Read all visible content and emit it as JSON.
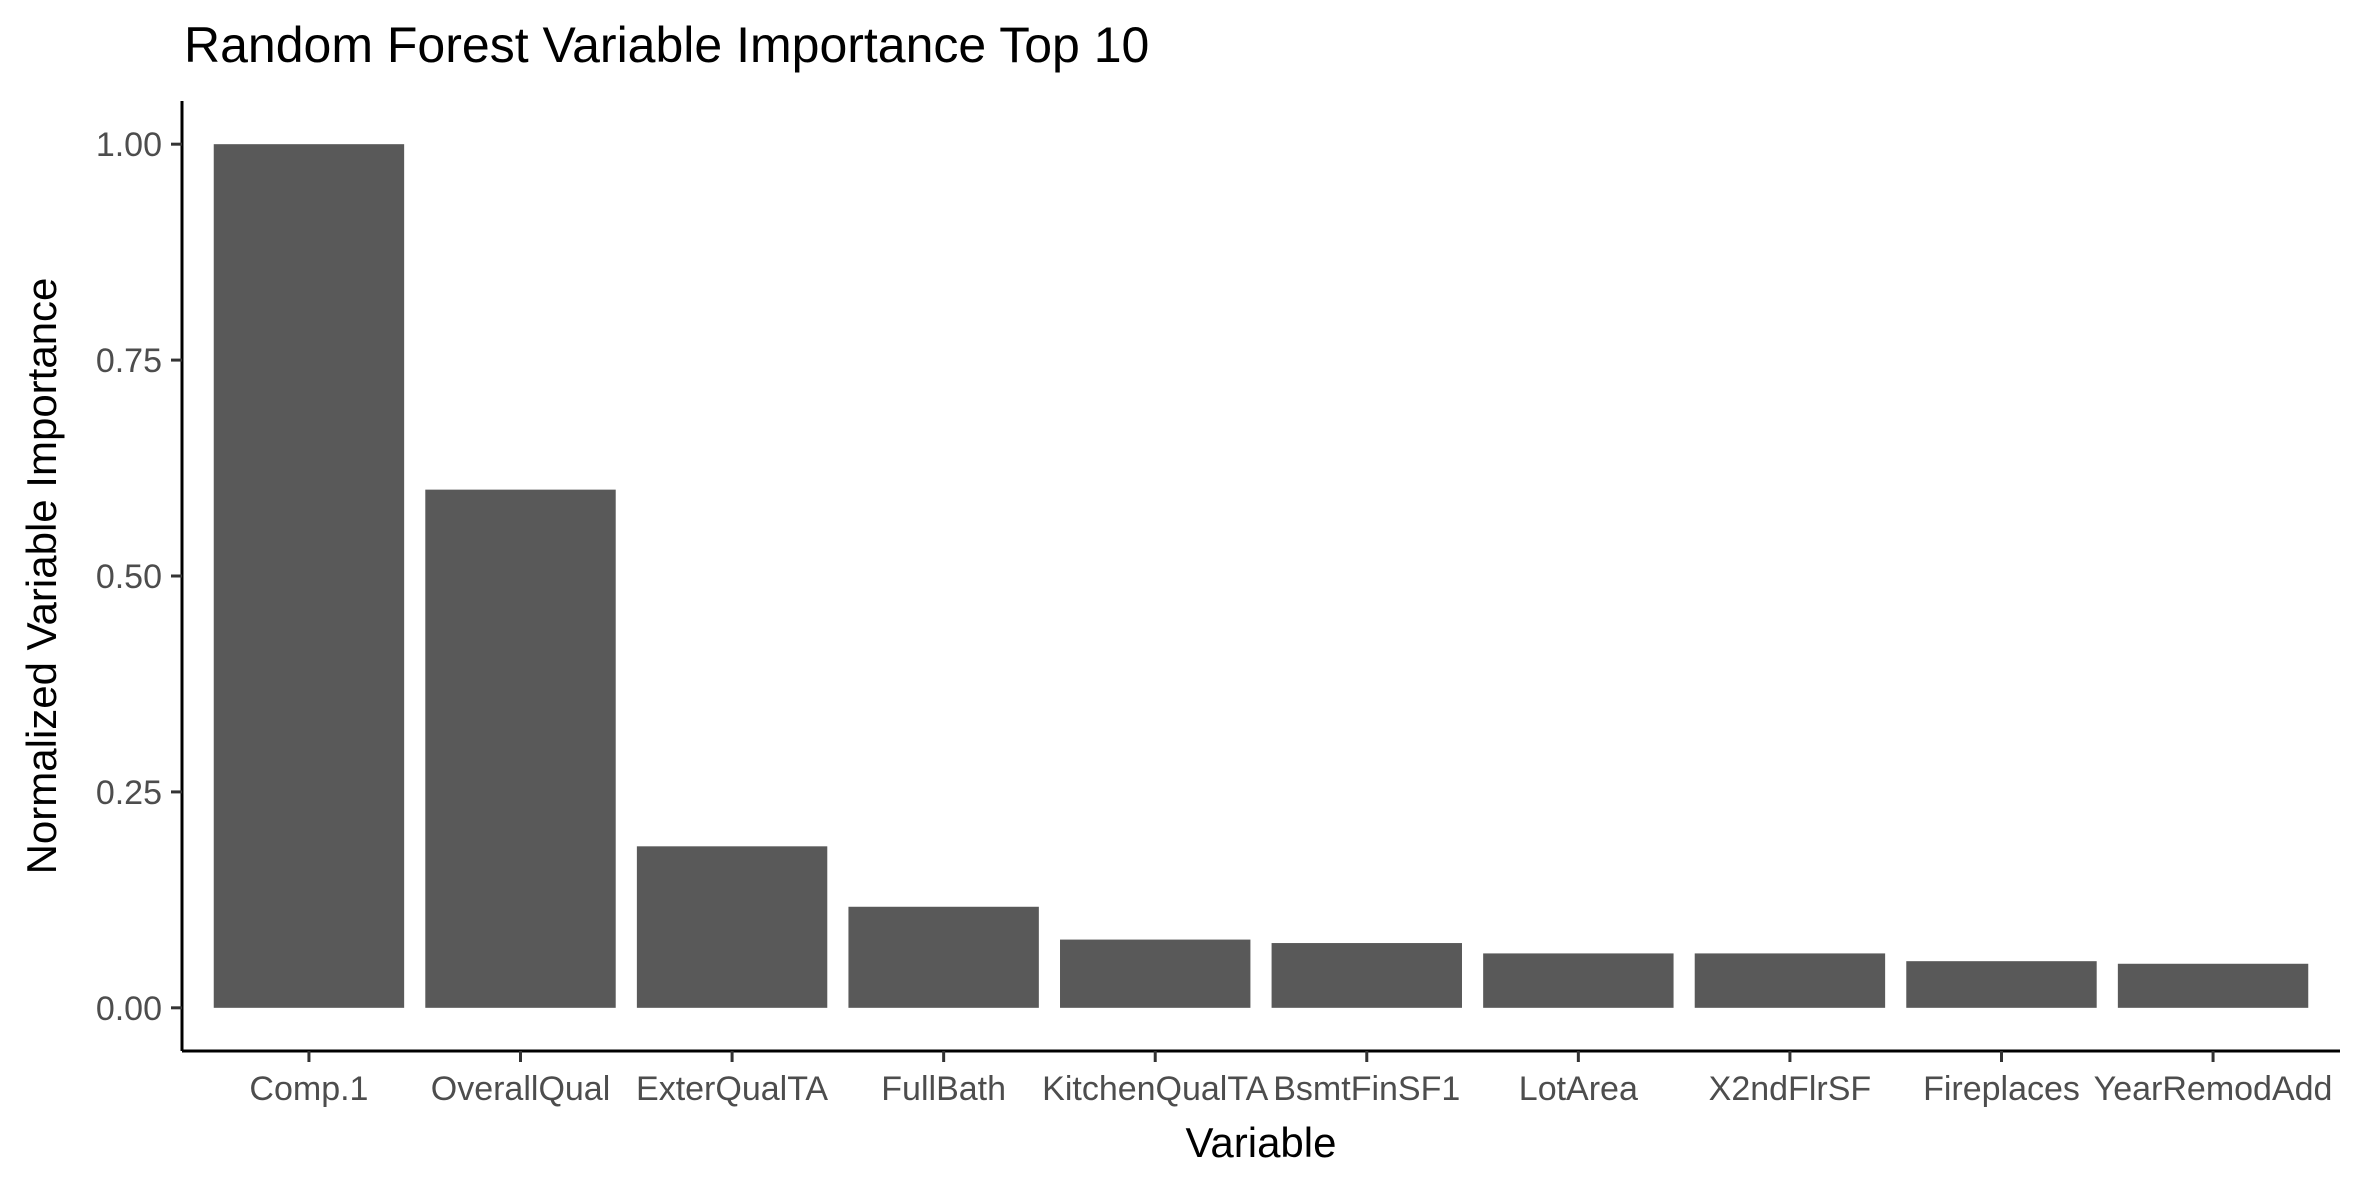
{
  "chart_data": {
    "type": "bar",
    "title": "Random Forest Variable Importance Top 10",
    "xlabel": "Variable",
    "ylabel": "Normalized Variable Importance",
    "categories": [
      "Comp.1",
      "OverallQual",
      "ExterQualTA",
      "FullBath",
      "KitchenQualTA",
      "BsmtFinSF1",
      "LotArea",
      "X2ndFlrSF",
      "Fireplaces",
      "YearRemodAdd"
    ],
    "values": [
      1.0,
      0.6,
      0.187,
      0.117,
      0.079,
      0.075,
      0.063,
      0.063,
      0.054,
      0.051
    ],
    "ylim": [
      -0.05,
      1.05
    ],
    "yticks": [
      0.0,
      0.25,
      0.5,
      0.75,
      1.0
    ],
    "ytick_labels": [
      "0.00",
      "0.25",
      "0.50",
      "0.75",
      "1.00"
    ],
    "grid": false,
    "bar_color": "#595959"
  }
}
